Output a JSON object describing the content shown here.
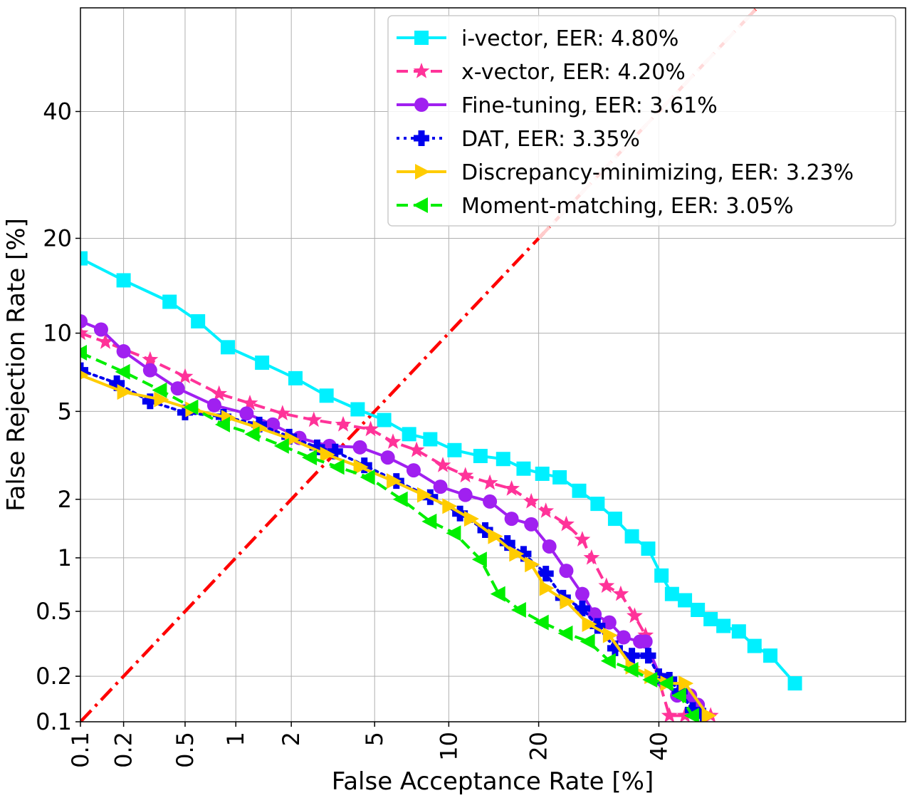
{
  "chart_data": {
    "type": "line",
    "title": "",
    "xlabel": "False Acceptance Rate [%]",
    "ylabel": "False Rejection Rate [%]",
    "scale": "probit",
    "xlim": [
      0.1,
      83
    ],
    "ylim": [
      0.1,
      59
    ],
    "xticks": [
      0.1,
      0.2,
      0.5,
      1,
      2,
      5,
      10,
      20,
      40
    ],
    "xtick_labels": [
      "0.1",
      "0.2",
      "0.5",
      "1",
      "2",
      "5",
      "10",
      "20",
      "40"
    ],
    "yticks": [
      0.1,
      0.2,
      0.5,
      1,
      2,
      5,
      10,
      20,
      40
    ],
    "ytick_labels": [
      "0.1",
      "0.2",
      "0.5",
      "1",
      "2",
      "5",
      "10",
      "20",
      "40"
    ],
    "grid": true,
    "legend_position": "top-right",
    "eer_line": {
      "color": "#ff0000",
      "style": "dash-dot",
      "points": [
        [
          0.1,
          0.1
        ],
        [
          83,
          83
        ]
      ]
    },
    "overlay_line": {
      "color": "#ffcccc",
      "style": "dash-dot",
      "points": [
        [
          20,
          20
        ],
        [
          83,
          83
        ]
      ]
    },
    "series": [
      {
        "name": "i-vector, EER:  4.80%",
        "color": "#00f0ff",
        "marker": "square",
        "dash": "solid",
        "points": [
          [
            0.1,
            17.5
          ],
          [
            0.2,
            15.0
          ],
          [
            0.4,
            12.8
          ],
          [
            0.6,
            11.0
          ],
          [
            0.9,
            8.9
          ],
          [
            1.4,
            7.8
          ],
          [
            2.1,
            6.8
          ],
          [
            3.0,
            5.8
          ],
          [
            4.2,
            5.1
          ],
          [
            5.5,
            4.6
          ],
          [
            7.0,
            4.0
          ],
          [
            8.5,
            3.8
          ],
          [
            10.5,
            3.4
          ],
          [
            13.0,
            3.2
          ],
          [
            15.5,
            3.1
          ],
          [
            18.0,
            2.8
          ],
          [
            20.5,
            2.65
          ],
          [
            23.0,
            2.55
          ],
          [
            26.0,
            2.2
          ],
          [
            29.0,
            1.9
          ],
          [
            32.0,
            1.6
          ],
          [
            35.0,
            1.3
          ],
          [
            38.0,
            1.12
          ],
          [
            40.5,
            0.8
          ],
          [
            42.5,
            0.63
          ],
          [
            45.0,
            0.58
          ],
          [
            47.5,
            0.51
          ],
          [
            50.0,
            0.45
          ],
          [
            52.5,
            0.41
          ],
          [
            55.5,
            0.38
          ],
          [
            58.5,
            0.31
          ],
          [
            61.5,
            0.27
          ],
          [
            66.0,
            0.18
          ]
        ]
      },
      {
        "name": "x-vector, EER:  4.20%",
        "color": "#ff3399",
        "marker": "star",
        "dash": "dashed",
        "points": [
          [
            0.1,
            10.0
          ],
          [
            0.15,
            9.3
          ],
          [
            0.3,
            8.0
          ],
          [
            0.5,
            6.9
          ],
          [
            0.8,
            5.9
          ],
          [
            1.2,
            5.4
          ],
          [
            1.8,
            4.9
          ],
          [
            2.6,
            4.6
          ],
          [
            3.6,
            4.4
          ],
          [
            4.8,
            4.2
          ],
          [
            6.0,
            3.7
          ],
          [
            7.5,
            3.4
          ],
          [
            9.5,
            2.9
          ],
          [
            11.5,
            2.6
          ],
          [
            14.0,
            2.4
          ],
          [
            16.5,
            2.25
          ],
          [
            19.0,
            1.95
          ],
          [
            21.0,
            1.75
          ],
          [
            24.0,
            1.5
          ],
          [
            26.5,
            1.25
          ],
          [
            28.0,
            1.0
          ],
          [
            30.5,
            0.7
          ],
          [
            33.0,
            0.63
          ],
          [
            35.5,
            0.47
          ],
          [
            37.5,
            0.36
          ],
          [
            42.0,
            0.11
          ],
          [
            45.0,
            0.11
          ],
          [
            50.0,
            0.11
          ]
        ]
      },
      {
        "name": "Fine-tuning, EER:  3.61%",
        "color": "#a020f0",
        "marker": "circle",
        "dash": "solid",
        "points": [
          [
            0.1,
            11.0
          ],
          [
            0.14,
            10.3
          ],
          [
            0.2,
            8.6
          ],
          [
            0.3,
            7.3
          ],
          [
            0.45,
            6.2
          ],
          [
            0.75,
            5.3
          ],
          [
            1.15,
            4.9
          ],
          [
            1.6,
            4.4
          ],
          [
            2.2,
            3.85
          ],
          [
            3.1,
            3.55
          ],
          [
            4.3,
            3.5
          ],
          [
            5.7,
            3.15
          ],
          [
            7.3,
            2.75
          ],
          [
            9.3,
            2.3
          ],
          [
            11.5,
            2.1
          ],
          [
            14.0,
            1.95
          ],
          [
            16.5,
            1.6
          ],
          [
            19.0,
            1.5
          ],
          [
            21.5,
            1.15
          ],
          [
            24.0,
            0.85
          ],
          [
            26.5,
            0.63
          ],
          [
            28.5,
            0.48
          ],
          [
            31.0,
            0.43
          ],
          [
            33.5,
            0.35
          ],
          [
            36.5,
            0.33
          ],
          [
            37.5,
            0.33
          ],
          [
            40.5,
            0.19
          ],
          [
            43.5,
            0.15
          ],
          [
            46.0,
            0.15
          ],
          [
            47.5,
            0.13
          ]
        ]
      },
      {
        "name": "DAT, EER:  3.35%",
        "color": "#0000ee",
        "marker": "plus",
        "dash": "dotted",
        "points": [
          [
            0.1,
            7.3
          ],
          [
            0.18,
            6.5
          ],
          [
            0.3,
            5.5
          ],
          [
            0.5,
            4.95
          ],
          [
            0.85,
            4.75
          ],
          [
            1.35,
            4.4
          ],
          [
            1.95,
            3.9
          ],
          [
            2.7,
            3.5
          ],
          [
            3.3,
            3.35
          ],
          [
            4.5,
            2.9
          ],
          [
            6.2,
            2.45
          ],
          [
            8.5,
            2.05
          ],
          [
            11.0,
            1.7
          ],
          [
            13.5,
            1.4
          ],
          [
            16.0,
            1.2
          ],
          [
            18.0,
            1.05
          ],
          [
            21.0,
            0.82
          ],
          [
            23.5,
            0.6
          ],
          [
            26.5,
            0.52
          ],
          [
            29.0,
            0.41
          ],
          [
            32.0,
            0.3
          ],
          [
            35.0,
            0.27
          ],
          [
            38.0,
            0.27
          ],
          [
            40.0,
            0.2
          ],
          [
            42.0,
            0.19
          ],
          [
            44.0,
            0.16
          ],
          [
            46.5,
            0.12
          ],
          [
            48.5,
            0.11
          ]
        ]
      },
      {
        "name": "Discrepancy-minimizing, EER:  3.23%",
        "color": "#ffcc00",
        "marker": "triangle-right",
        "dash": "solid",
        "points": [
          [
            0.1,
            7.0
          ],
          [
            0.2,
            6.0
          ],
          [
            0.35,
            5.6
          ],
          [
            0.55,
            5.1
          ],
          [
            0.9,
            4.7
          ],
          [
            1.35,
            4.25
          ],
          [
            2.0,
            3.8
          ],
          [
            3.0,
            3.25
          ],
          [
            4.3,
            2.85
          ],
          [
            6.0,
            2.45
          ],
          [
            8.0,
            2.1
          ],
          [
            10.0,
            1.85
          ],
          [
            12.0,
            1.6
          ],
          [
            14.5,
            1.3
          ],
          [
            17.0,
            1.05
          ],
          [
            19.0,
            0.92
          ],
          [
            21.0,
            0.68
          ],
          [
            24.0,
            0.57
          ],
          [
            27.5,
            0.42
          ],
          [
            31.0,
            0.36
          ],
          [
            35.0,
            0.23
          ],
          [
            38.5,
            0.2
          ],
          [
            41.5,
            0.18
          ],
          [
            45.0,
            0.18
          ],
          [
            49.5,
            0.11
          ]
        ]
      },
      {
        "name": "Moment-matching, EER:  3.05%",
        "color": "#00ee00",
        "marker": "triangle-left",
        "dash": "dashed",
        "points": [
          [
            0.1,
            8.5
          ],
          [
            0.2,
            7.2
          ],
          [
            0.35,
            6.1
          ],
          [
            0.55,
            5.2
          ],
          [
            0.85,
            4.4
          ],
          [
            1.25,
            4.0
          ],
          [
            1.8,
            3.55
          ],
          [
            2.5,
            3.15
          ],
          [
            3.4,
            2.85
          ],
          [
            4.7,
            2.55
          ],
          [
            6.5,
            2.0
          ],
          [
            8.5,
            1.55
          ],
          [
            10.5,
            1.35
          ],
          [
            13.0,
            0.98
          ],
          [
            15.0,
            0.63
          ],
          [
            17.5,
            0.51
          ],
          [
            20.5,
            0.43
          ],
          [
            24.0,
            0.37
          ],
          [
            27.5,
            0.33
          ],
          [
            31.0,
            0.25
          ],
          [
            35.0,
            0.22
          ],
          [
            38.5,
            0.19
          ],
          [
            41.5,
            0.18
          ],
          [
            44.0,
            0.15
          ],
          [
            46.5,
            0.11
          ]
        ]
      }
    ]
  }
}
